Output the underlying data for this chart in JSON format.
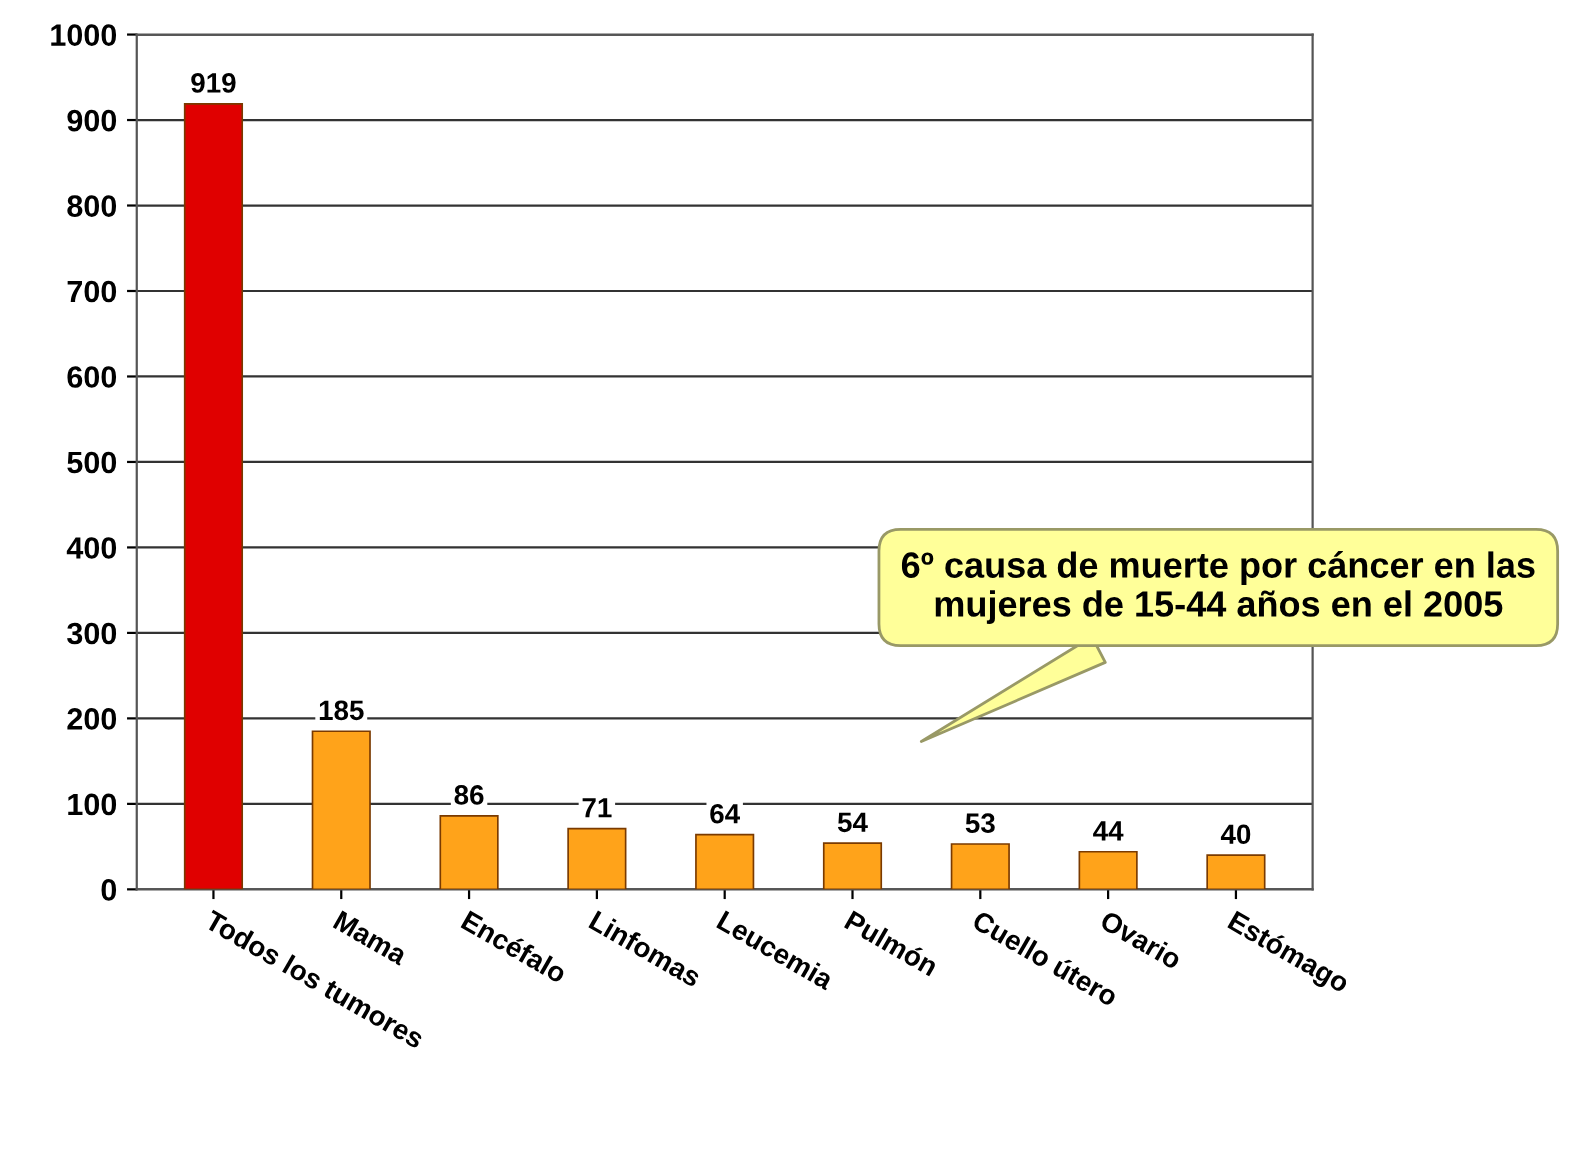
{
  "chart_data": {
    "type": "bar",
    "categories": [
      "Todos los tumores",
      "Mama",
      "Encéfalo",
      "Linfomas",
      "Leucemia",
      "Pulmón",
      "Cuello útero",
      "Ovario",
      "Estómago"
    ],
    "values": [
      919,
      185,
      86,
      71,
      64,
      54,
      53,
      44,
      40
    ],
    "colors": [
      "#e00000",
      "#ffa31a",
      "#ffa31a",
      "#ffa31a",
      "#ffa31a",
      "#ffa31a",
      "#ffa31a",
      "#ffa31a",
      "#ffa31a"
    ],
    "ylim": [
      0,
      1000
    ],
    "yticks": [
      0,
      100,
      200,
      300,
      400,
      500,
      600,
      700,
      800,
      900,
      1000
    ],
    "grid": "y",
    "data_labels": true,
    "annotations": [
      "6º causa de muerte por cáncer en las mujeres de 15-44 años en el 2005"
    ]
  }
}
